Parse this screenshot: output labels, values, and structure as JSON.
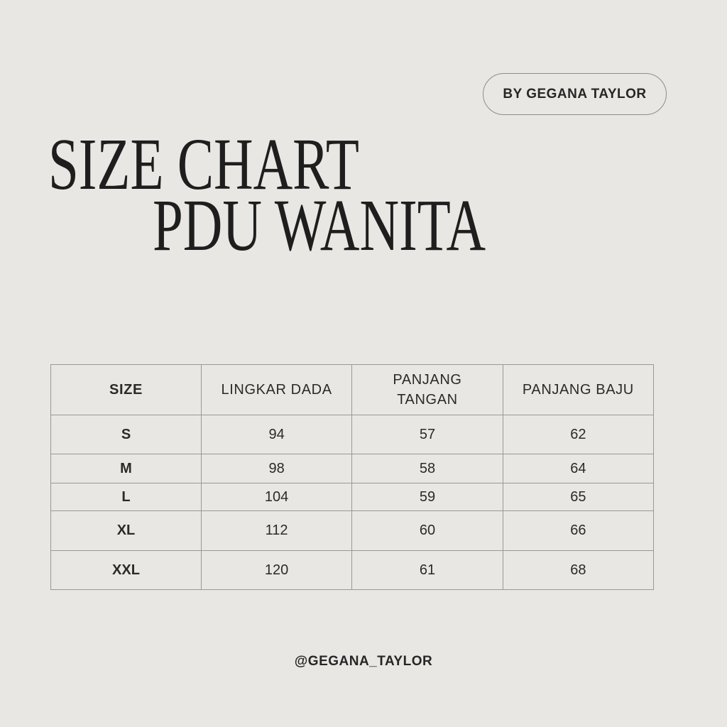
{
  "badge": "BY GEGANA TAYLOR",
  "title": {
    "line1": "SIZE CHART",
    "line2": "PDU WANITA"
  },
  "table": {
    "headers": [
      "SIZE",
      "LINGKAR DADA",
      "PANJANG TANGAN",
      "PANJANG BAJU"
    ],
    "rows": [
      [
        "S",
        "94",
        "57",
        "62"
      ],
      [
        "M",
        "98",
        "58",
        "64"
      ],
      [
        "L",
        "104",
        "59",
        "65"
      ],
      [
        "XL",
        "112",
        "60",
        "66"
      ],
      [
        "XXL",
        "120",
        "61",
        "68"
      ]
    ]
  },
  "footer": "@GEGANA_TAYLOR"
}
